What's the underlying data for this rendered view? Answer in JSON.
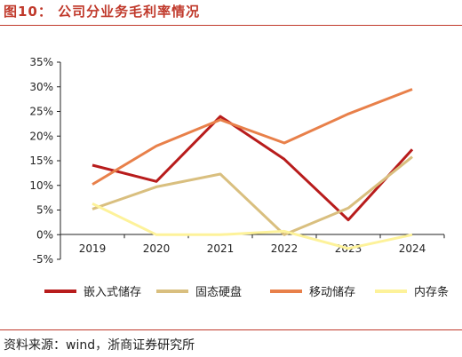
{
  "header": {
    "title": "图10：  公司分业务毛利率情况"
  },
  "footer": {
    "source": "资料来源：wind，浙商证券研究所"
  },
  "chart_data": {
    "type": "line",
    "x": [
      "2019",
      "2020",
      "2021",
      "2022",
      "2023",
      "2024"
    ],
    "ylim": [
      -0.05,
      0.35
    ],
    "yticks": [
      "-5%",
      "0%",
      "5%",
      "10%",
      "15%",
      "20%",
      "25%",
      "30%",
      "35%"
    ],
    "ytick_values": [
      -0.05,
      0,
      0.05,
      0.1,
      0.15,
      0.2,
      0.25,
      0.3,
      0.35
    ],
    "legend_position": "bottom",
    "grid": false,
    "series": [
      {
        "name": "嵌入式储存",
        "color": "#b81c1c",
        "values": [
          0.141,
          0.108,
          0.24,
          0.153,
          0.03,
          0.173
        ]
      },
      {
        "name": "固态硬盘",
        "color": "#d9bf7f",
        "values": [
          0.052,
          0.097,
          0.123,
          0.0,
          0.054,
          0.158
        ]
      },
      {
        "name": "移动储存",
        "color": "#e8804a",
        "values": [
          0.102,
          0.18,
          0.233,
          0.186,
          0.245,
          0.295
        ]
      },
      {
        "name": "内存条",
        "color": "#fdf29a",
        "values": [
          0.063,
          0.0,
          0.0,
          0.007,
          -0.028,
          0.0
        ]
      }
    ]
  }
}
